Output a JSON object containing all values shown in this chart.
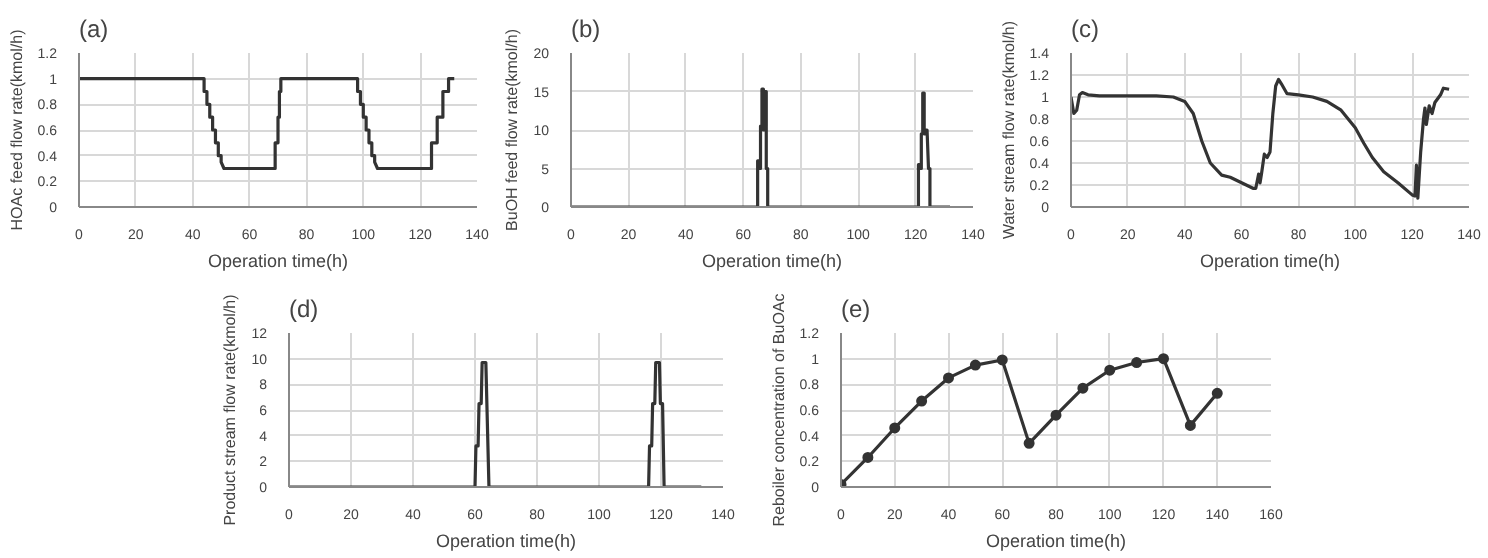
{
  "chart_data": [
    {
      "type": "line",
      "title": "(a)",
      "xlabel": "Operation time(h)",
      "ylabel": "HOAc feed flow rate(kmol/h)",
      "xlim": [
        0,
        140
      ],
      "ylim": [
        0,
        1.2
      ],
      "xticks": [
        0,
        20,
        40,
        60,
        80,
        100,
        120,
        140
      ],
      "yticks": [
        0,
        0.2,
        0.4,
        0.6,
        0.8,
        1,
        1.2
      ],
      "grid": true,
      "line_style": "solid",
      "marker": "none",
      "color": "#333333",
      "x": [
        0,
        44,
        44,
        45,
        45,
        46,
        46,
        47,
        47,
        48,
        48,
        49,
        49,
        50,
        50,
        51,
        69,
        69,
        70,
        70,
        70.5,
        70.5,
        71,
        71,
        98,
        98,
        99,
        99,
        100,
        100,
        101,
        101,
        102,
        102,
        103,
        103,
        104,
        104,
        105,
        124,
        124,
        126,
        126,
        128,
        128,
        130,
        130,
        132
      ],
      "values": [
        1,
        1,
        0.9,
        0.9,
        0.8,
        0.8,
        0.7,
        0.7,
        0.6,
        0.6,
        0.5,
        0.5,
        0.4,
        0.4,
        0.35,
        0.3,
        0.3,
        0.5,
        0.5,
        0.7,
        0.7,
        0.9,
        0.9,
        1,
        1,
        0.9,
        0.9,
        0.8,
        0.8,
        0.7,
        0.7,
        0.6,
        0.6,
        0.5,
        0.5,
        0.4,
        0.4,
        0.35,
        0.3,
        0.3,
        0.5,
        0.5,
        0.7,
        0.7,
        0.9,
        0.9,
        1,
        1
      ]
    },
    {
      "type": "line",
      "title": "(b)",
      "xlabel": "Operation time(h)",
      "ylabel": "BuOH feed flow rate(kmol/h)",
      "xlim": [
        0,
        140
      ],
      "ylim": [
        0,
        20
      ],
      "xticks": [
        0,
        20,
        40,
        60,
        80,
        100,
        120,
        140
      ],
      "yticks": [
        0,
        5,
        10,
        15,
        20
      ],
      "grid": true,
      "line_style": "solid",
      "marker": "none",
      "color": "#333333",
      "x": [
        0,
        65,
        65,
        65.7,
        65.7,
        66,
        66,
        66.5,
        66.5,
        67,
        67,
        67.5,
        67.5,
        68,
        68,
        68.5,
        68.5,
        121,
        121,
        121.5,
        121.5,
        122,
        122,
        122.5,
        122.5,
        123,
        123,
        123.5,
        123.5,
        124,
        124.5,
        125,
        125,
        132
      ],
      "values": [
        0,
        0,
        6,
        6,
        5,
        5,
        10.5,
        10.5,
        15.3,
        15.3,
        10,
        10,
        15,
        15,
        5,
        5,
        0,
        0,
        5.5,
        5.5,
        5,
        5,
        9.5,
        9.5,
        14.8,
        14.8,
        9.5,
        9.5,
        10,
        10,
        5,
        5,
        0,
        0
      ]
    },
    {
      "type": "line",
      "title": "(c)",
      "xlabel": "Operation time(h)",
      "ylabel": "Water stream flow rate(kmol/h)",
      "xlim": [
        0,
        140
      ],
      "ylim": [
        0,
        1.4
      ],
      "xticks": [
        0,
        20,
        40,
        60,
        80,
        100,
        120,
        140
      ],
      "yticks": [
        0,
        0.2,
        0.4,
        0.6,
        0.8,
        1,
        1.2,
        1.4
      ],
      "grid": true,
      "line_style": "solid",
      "marker": "none",
      "color": "#333333",
      "x": [
        0,
        1,
        2,
        3,
        4,
        6,
        10,
        20,
        30,
        36,
        40,
        43,
        46,
        49,
        53,
        56,
        60,
        64,
        65,
        66,
        66.5,
        67,
        68,
        69,
        70,
        71,
        72,
        73,
        74,
        76,
        80,
        85,
        90,
        95,
        100,
        103,
        106,
        110,
        115,
        120,
        121,
        121.5,
        122,
        123,
        124,
        124.5,
        125,
        126,
        127,
        128,
        130,
        131,
        133
      ],
      "values": [
        1,
        0.85,
        0.88,
        1.02,
        1.04,
        1.02,
        1.01,
        1.01,
        1.01,
        1,
        0.96,
        0.85,
        0.6,
        0.4,
        0.29,
        0.27,
        0.22,
        0.17,
        0.17,
        0.3,
        0.22,
        0.3,
        0.48,
        0.45,
        0.5,
        0.85,
        1.1,
        1.16,
        1.12,
        1.03,
        1.02,
        1,
        0.96,
        0.88,
        0.72,
        0.58,
        0.45,
        0.32,
        0.22,
        0.11,
        0.1,
        0.38,
        0.08,
        0.5,
        0.8,
        0.9,
        0.75,
        0.92,
        0.85,
        0.95,
        1.02,
        1.08,
        1.07
      ]
    },
    {
      "type": "line",
      "title": "(d)",
      "xlabel": "Operation time(h)",
      "ylabel": "Product stream flow rate(kmol/h)",
      "xlim": [
        0,
        140
      ],
      "ylim": [
        0,
        12
      ],
      "xticks": [
        0,
        20,
        40,
        60,
        80,
        100,
        120,
        140
      ],
      "yticks": [
        0,
        2,
        4,
        6,
        8,
        10,
        12
      ],
      "grid": true,
      "line_style": "solid",
      "marker": "none",
      "color": "#333333",
      "x": [
        0,
        60,
        60.3,
        61,
        61.3,
        62,
        62.3,
        63.5,
        64.5,
        116,
        116.3,
        117,
        117.3,
        118,
        118.3,
        119.5,
        119.8,
        120.5,
        121,
        133
      ],
      "values": [
        0,
        0,
        3.2,
        3.2,
        6.5,
        6.5,
        9.7,
        9.7,
        0,
        0,
        3.2,
        3.2,
        6.5,
        6.5,
        9.7,
        9.7,
        6.5,
        6.5,
        0,
        0
      ]
    },
    {
      "type": "line",
      "title": "(e)",
      "xlabel": "Operation time(h)",
      "ylabel": "Reboiler concentration of BuOAc",
      "xlim": [
        0,
        160
      ],
      "ylim": [
        0,
        1.2
      ],
      "xticks": [
        0,
        20,
        40,
        60,
        80,
        100,
        120,
        140,
        160
      ],
      "yticks": [
        0,
        0.2,
        0.4,
        0.6,
        0.8,
        1,
        1.2
      ],
      "grid": true,
      "line_style": "solid",
      "marker": "circle",
      "color": "#333333",
      "x": [
        0,
        10,
        20,
        30,
        40,
        50,
        60,
        70,
        80,
        90,
        100,
        110,
        120,
        130,
        140
      ],
      "values": [
        0.02,
        0.23,
        0.46,
        0.67,
        0.85,
        0.95,
        0.99,
        0.34,
        0.56,
        0.77,
        0.91,
        0.97,
        1.0,
        0.48,
        0.73
      ]
    }
  ]
}
